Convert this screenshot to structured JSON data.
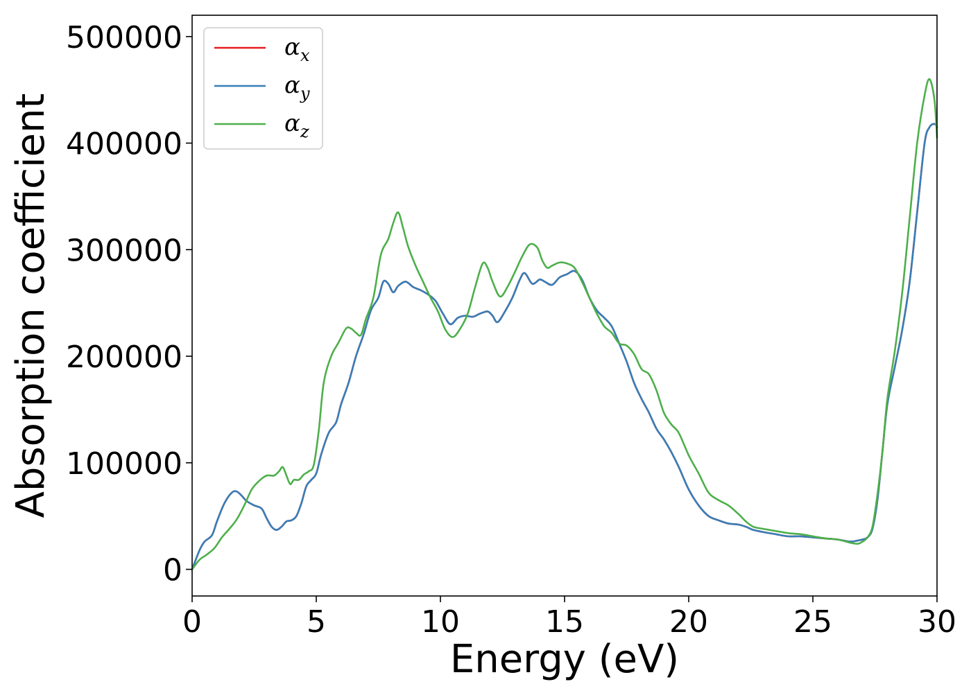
{
  "chart_data": {
    "type": "line",
    "title": "",
    "xlabel": "Energy (eV)",
    "ylabel": "Absorption coefficient",
    "xlim": [
      0,
      30
    ],
    "ylim": [
      -25000,
      520000
    ],
    "xticks": [
      0,
      5,
      10,
      15,
      20,
      25,
      30
    ],
    "xtick_labels": [
      "0",
      "5",
      "10",
      "15",
      "20",
      "25",
      "30"
    ],
    "yticks": [
      0,
      100000,
      200000,
      300000,
      400000,
      500000
    ],
    "ytick_labels": [
      "0",
      "100000",
      "200000",
      "300000",
      "400000",
      "500000"
    ],
    "grid": false,
    "legend": {
      "placement": "top-left"
    },
    "series": [
      {
        "name": "α",
        "sub": "x",
        "color": "#e41a1c",
        "x": [
          0,
          0.3,
          0.5,
          0.8,
          1.0,
          1.3,
          1.6,
          1.8,
          2.0,
          2.2,
          2.5,
          2.8,
          3.0,
          3.2,
          3.4,
          3.6,
          3.8,
          4.0,
          4.2,
          4.4,
          4.6,
          4.8,
          5.0,
          5.2,
          5.5,
          5.8,
          6.0,
          6.3,
          6.6,
          6.9,
          7.2,
          7.5,
          7.7,
          7.9,
          8.1,
          8.3,
          8.6,
          8.9,
          9.2,
          9.5,
          9.8,
          10.1,
          10.4,
          10.7,
          11.0,
          11.3,
          11.6,
          11.9,
          12.1,
          12.3,
          12.6,
          12.9,
          13.2,
          13.4,
          13.7,
          14.0,
          14.2,
          14.5,
          14.8,
          15.1,
          15.4,
          15.7,
          16.0,
          16.3,
          16.6,
          16.9,
          17.2,
          17.5,
          17.8,
          18.1,
          18.4,
          18.7,
          19.0,
          19.3,
          19.6,
          20.0,
          20.4,
          20.8,
          21.2,
          21.6,
          22.0,
          22.3,
          22.6,
          23.0,
          23.5,
          24.0,
          24.5,
          25.0,
          25.5,
          26.0,
          26.5,
          26.8,
          27.0,
          27.2,
          27.4,
          27.6,
          27.8,
          28.0,
          28.3,
          28.6,
          28.9,
          29.2,
          29.5,
          29.7,
          29.9,
          30.0
        ],
        "y": [
          0,
          18000,
          26000,
          32000,
          45000,
          62000,
          72000,
          73000,
          69000,
          64000,
          60000,
          57000,
          48000,
          40000,
          37000,
          40000,
          45000,
          46000,
          50000,
          62000,
          78000,
          84000,
          90000,
          108000,
          128000,
          138000,
          155000,
          175000,
          200000,
          220000,
          243000,
          255000,
          270000,
          268000,
          260000,
          266000,
          270000,
          265000,
          262000,
          258000,
          252000,
          240000,
          230000,
          236000,
          238000,
          237000,
          240000,
          242000,
          238000,
          232000,
          242000,
          255000,
          272000,
          278000,
          268000,
          272000,
          270000,
          267000,
          274000,
          277000,
          280000,
          272000,
          255000,
          243000,
          236000,
          228000,
          212000,
          195000,
          175000,
          160000,
          147000,
          132000,
          122000,
          110000,
          96000,
          75000,
          60000,
          50000,
          46000,
          43000,
          42000,
          40000,
          37000,
          35000,
          33000,
          31000,
          31000,
          30000,
          29000,
          28000,
          26000,
          27000,
          28000,
          30000,
          38000,
          65000,
          110000,
          155000,
          190000,
          225000,
          270000,
          335000,
          400000,
          415000,
          418000,
          415000
        ]
      },
      {
        "name": "α",
        "sub": "y",
        "color": "#377eb8",
        "x": [
          0,
          0.3,
          0.5,
          0.8,
          1.0,
          1.3,
          1.6,
          1.8,
          2.0,
          2.2,
          2.5,
          2.8,
          3.0,
          3.2,
          3.4,
          3.6,
          3.8,
          4.0,
          4.2,
          4.4,
          4.6,
          4.8,
          5.0,
          5.2,
          5.5,
          5.8,
          6.0,
          6.3,
          6.6,
          6.9,
          7.2,
          7.5,
          7.7,
          7.9,
          8.1,
          8.3,
          8.6,
          8.9,
          9.2,
          9.5,
          9.8,
          10.1,
          10.4,
          10.7,
          11.0,
          11.3,
          11.6,
          11.9,
          12.1,
          12.3,
          12.6,
          12.9,
          13.2,
          13.4,
          13.7,
          14.0,
          14.2,
          14.5,
          14.8,
          15.1,
          15.4,
          15.7,
          16.0,
          16.3,
          16.6,
          16.9,
          17.2,
          17.5,
          17.8,
          18.1,
          18.4,
          18.7,
          19.0,
          19.3,
          19.6,
          20.0,
          20.4,
          20.8,
          21.2,
          21.6,
          22.0,
          22.3,
          22.6,
          23.0,
          23.5,
          24.0,
          24.5,
          25.0,
          25.5,
          26.0,
          26.5,
          26.8,
          27.0,
          27.2,
          27.4,
          27.6,
          27.8,
          28.0,
          28.3,
          28.6,
          28.9,
          29.2,
          29.5,
          29.7,
          29.9,
          30.0
        ],
        "y": [
          0,
          18000,
          26000,
          32000,
          45000,
          62000,
          72000,
          73000,
          69000,
          64000,
          60000,
          57000,
          48000,
          40000,
          37000,
          40000,
          45000,
          46000,
          50000,
          62000,
          78000,
          84000,
          90000,
          108000,
          128000,
          138000,
          155000,
          175000,
          200000,
          220000,
          243000,
          255000,
          270000,
          268000,
          260000,
          266000,
          270000,
          265000,
          262000,
          258000,
          252000,
          240000,
          230000,
          236000,
          238000,
          237000,
          240000,
          242000,
          238000,
          232000,
          242000,
          255000,
          272000,
          278000,
          268000,
          272000,
          270000,
          267000,
          274000,
          277000,
          280000,
          272000,
          255000,
          243000,
          236000,
          228000,
          212000,
          195000,
          175000,
          160000,
          147000,
          132000,
          122000,
          110000,
          96000,
          75000,
          60000,
          50000,
          46000,
          43000,
          42000,
          40000,
          37000,
          35000,
          33000,
          31000,
          31000,
          30000,
          29000,
          28000,
          26000,
          27000,
          28000,
          30000,
          38000,
          65000,
          110000,
          155000,
          190000,
          225000,
          270000,
          335000,
          400000,
          415000,
          418000,
          415000
        ]
      },
      {
        "name": "α",
        "sub": "z",
        "color": "#4daf4a",
        "x": [
          0,
          0.3,
          0.6,
          0.9,
          1.2,
          1.5,
          1.8,
          2.1,
          2.4,
          2.7,
          3.0,
          3.3,
          3.5,
          3.65,
          3.8,
          3.95,
          4.1,
          4.3,
          4.5,
          4.7,
          4.9,
          5.1,
          5.3,
          5.6,
          5.9,
          6.2,
          6.4,
          6.6,
          6.8,
          7.0,
          7.3,
          7.6,
          7.9,
          8.1,
          8.3,
          8.5,
          8.7,
          9.0,
          9.3,
          9.6,
          9.9,
          10.2,
          10.5,
          10.8,
          11.1,
          11.4,
          11.7,
          11.9,
          12.1,
          12.4,
          12.7,
          13.0,
          13.3,
          13.6,
          13.9,
          14.1,
          14.3,
          14.5,
          14.8,
          15.1,
          15.4,
          15.7,
          16.0,
          16.3,
          16.6,
          16.9,
          17.2,
          17.5,
          17.8,
          18.1,
          18.4,
          18.7,
          19.0,
          19.3,
          19.6,
          20.0,
          20.4,
          20.8,
          21.2,
          21.6,
          22.0,
          22.3,
          22.6,
          23.0,
          23.5,
          24.0,
          24.5,
          25.0,
          25.5,
          26.0,
          26.5,
          26.8,
          27.0,
          27.2,
          27.4,
          27.6,
          27.8,
          28.0,
          28.3,
          28.6,
          28.9,
          29.2,
          29.5,
          29.7,
          29.9,
          30.0
        ],
        "y": [
          0,
          9000,
          14000,
          20000,
          30000,
          38000,
          47000,
          60000,
          75000,
          83000,
          88000,
          88000,
          92000,
          96000,
          88000,
          80000,
          84000,
          84000,
          89000,
          92000,
          98000,
          130000,
          175000,
          200000,
          213000,
          226000,
          226000,
          222000,
          220000,
          235000,
          255000,
          295000,
          310000,
          325000,
          335000,
          320000,
          303000,
          285000,
          270000,
          255000,
          242000,
          225000,
          218000,
          226000,
          240000,
          265000,
          287000,
          283000,
          270000,
          256000,
          265000,
          279000,
          294000,
          305000,
          302000,
          290000,
          283000,
          285000,
          288000,
          287000,
          283000,
          270000,
          255000,
          240000,
          228000,
          222000,
          212000,
          210000,
          202000,
          188000,
          183000,
          168000,
          147000,
          136000,
          128000,
          107000,
          90000,
          72000,
          65000,
          60000,
          52000,
          45000,
          40000,
          38000,
          36000,
          34000,
          33000,
          31000,
          29000,
          28000,
          25000,
          24000,
          26000,
          30000,
          40000,
          70000,
          110000,
          160000,
          205000,
          260000,
          330000,
          400000,
          445000,
          460000,
          440000,
          405000
        ]
      }
    ]
  }
}
